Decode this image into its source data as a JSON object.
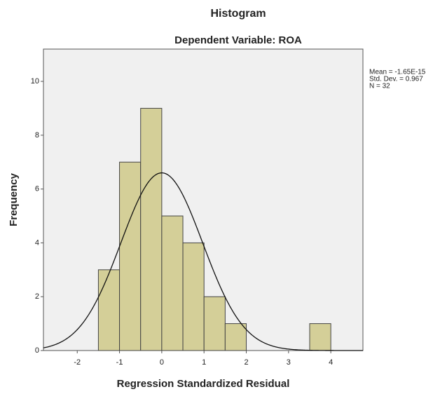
{
  "chart_data": {
    "type": "histogram",
    "title": "Histogram",
    "subtitle": "Dependent Variable: ROA",
    "x_label": "Regression Standardized Residual",
    "y_label": "Frequency",
    "bins": [
      -1.5,
      -1,
      -0.5,
      0,
      0.5,
      1,
      1.5,
      2,
      2.5,
      3,
      3.5,
      4
    ],
    "values": [
      3,
      7,
      9,
      5,
      4,
      2,
      1,
      0,
      0,
      0,
      1
    ],
    "color": "#d4cf98",
    "xlim": [
      -2.8,
      4.76
    ],
    "xticks": [
      -2,
      -1,
      0,
      1,
      2,
      3,
      4
    ],
    "ylim": [
      0,
      11.2
    ],
    "yticks": [
      0,
      2,
      4,
      6,
      8,
      10
    ],
    "annotations": [
      "Mean = -1.65E-15",
      "Std. Dev. = 0.967",
      "N = 32"
    ],
    "normal_curve": {
      "mean": -1.65e-15,
      "std": 0.967,
      "n": 32
    }
  }
}
